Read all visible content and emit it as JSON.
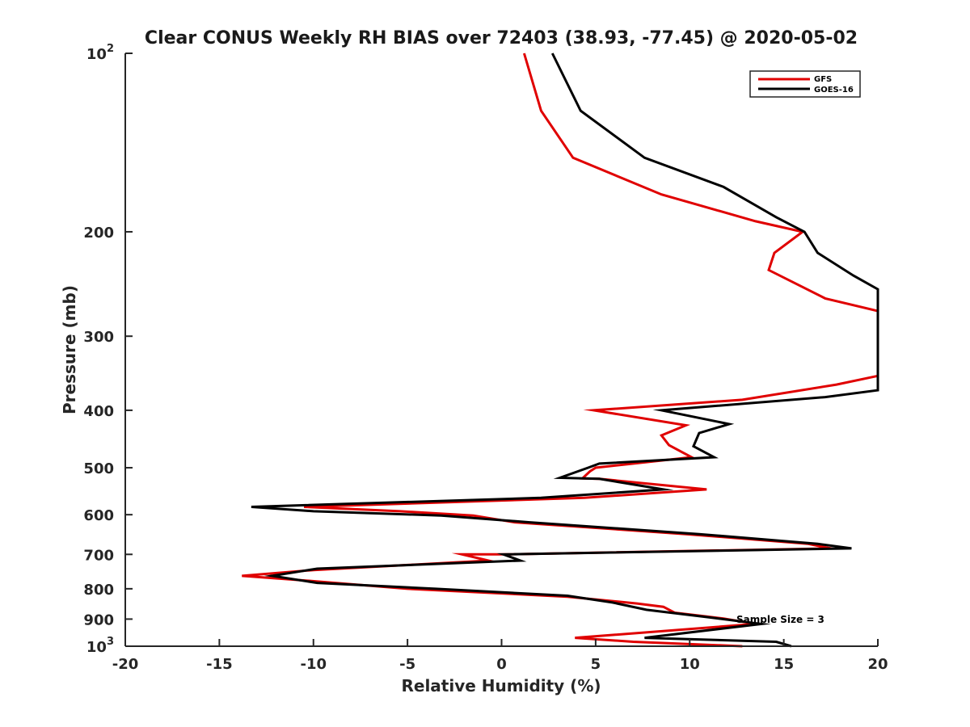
{
  "chart_data": {
    "type": "line",
    "title": "Clear CONUS Weekly RH BIAS over 72403 (38.93, -77.45) @ 2020-05-02",
    "xlabel": "Relative Humidity (%)",
    "ylabel": "Pressure (mb)",
    "xlim": [
      -20,
      20
    ],
    "ylim": [
      100,
      1000
    ],
    "y_scale": "log",
    "y_reversed": true,
    "x_ticks": [
      "-20",
      "-15",
      "-10",
      "-5",
      "0",
      "5",
      "10",
      "15",
      "20"
    ],
    "y_ticks": [
      {
        "value": 100,
        "base": "10",
        "exp": "2",
        "text": ""
      },
      {
        "value": 200,
        "base": "",
        "exp": "",
        "text": "200"
      },
      {
        "value": 300,
        "base": "",
        "exp": "",
        "text": "300"
      },
      {
        "value": 400,
        "base": "",
        "exp": "",
        "text": "400"
      },
      {
        "value": 500,
        "base": "",
        "exp": "",
        "text": "500"
      },
      {
        "value": 600,
        "base": "",
        "exp": "",
        "text": "600"
      },
      {
        "value": 700,
        "base": "",
        "exp": "",
        "text": "700"
      },
      {
        "value": 800,
        "base": "",
        "exp": "",
        "text": "800"
      },
      {
        "value": 900,
        "base": "",
        "exp": "",
        "text": "900"
      },
      {
        "value": 1000,
        "base": "10",
        "exp": "3",
        "text": ""
      }
    ],
    "grid": false,
    "legend_position": "top-right",
    "annotation": "Sample Size = 3",
    "series": [
      {
        "name": "GFS",
        "color": "#e00000",
        "points": [
          [
            1.2,
            100
          ],
          [
            2.1,
            125
          ],
          [
            3.8,
            150
          ],
          [
            8.5,
            173
          ],
          [
            13.5,
            192
          ],
          [
            16.0,
            200
          ],
          [
            14.5,
            217
          ],
          [
            14.2,
            232
          ],
          [
            17.2,
            259
          ],
          [
            20.0,
            272
          ],
          [
            20.0,
            350
          ],
          [
            17.8,
            362
          ],
          [
            12.8,
            384
          ],
          [
            4.9,
            400
          ],
          [
            9.8,
            424
          ],
          [
            8.5,
            441
          ],
          [
            8.9,
            458
          ],
          [
            10.1,
            480
          ],
          [
            5.0,
            500
          ],
          [
            4.7,
            507
          ],
          [
            4.3,
            521
          ],
          [
            5.2,
            522
          ],
          [
            10.9,
            544
          ],
          [
            4.4,
            562
          ],
          [
            -10.5,
            582
          ],
          [
            -5.4,
            592
          ],
          [
            -1.5,
            602
          ],
          [
            0.7,
            618
          ],
          [
            9.8,
            647
          ],
          [
            16.3,
            672
          ],
          [
            17.5,
            684
          ],
          [
            0.2,
            700
          ],
          [
            -2.1,
            700
          ],
          [
            -0.7,
            717
          ],
          [
            -10.0,
            744
          ],
          [
            -13.8,
            761
          ],
          [
            -10.1,
            776
          ],
          [
            -5.0,
            800
          ],
          [
            3.5,
            825
          ],
          [
            7.2,
            847
          ],
          [
            8.6,
            858
          ],
          [
            9.2,
            878
          ],
          [
            11.8,
            898
          ],
          [
            13.5,
            917
          ],
          [
            3.9,
            968
          ],
          [
            7.0,
            983
          ],
          [
            12.8,
            1000
          ]
        ]
      },
      {
        "name": "GOES-16",
        "color": "#000000",
        "points": [
          [
            2.7,
            100
          ],
          [
            4.2,
            125
          ],
          [
            7.6,
            150
          ],
          [
            11.8,
            168
          ],
          [
            14.6,
            189
          ],
          [
            16.1,
            200
          ],
          [
            16.8,
            217
          ],
          [
            18.7,
            237
          ],
          [
            20.0,
            250
          ],
          [
            20.0,
            370
          ],
          [
            17.2,
            380
          ],
          [
            11.5,
            393
          ],
          [
            8.5,
            400
          ],
          [
            12.1,
            422
          ],
          [
            10.5,
            437
          ],
          [
            10.2,
            460
          ],
          [
            11.3,
            480
          ],
          [
            5.2,
            492
          ],
          [
            4.6,
            500
          ],
          [
            3.1,
            520
          ],
          [
            5.2,
            522
          ],
          [
            8.6,
            544
          ],
          [
            2.1,
            562
          ],
          [
            -13.3,
            582
          ],
          [
            -10.0,
            592
          ],
          [
            -3.2,
            602
          ],
          [
            1.5,
            618
          ],
          [
            10.5,
            647
          ],
          [
            16.8,
            672
          ],
          [
            18.6,
            684
          ],
          [
            0.1,
            700
          ],
          [
            1.0,
            717
          ],
          [
            -9.8,
            740
          ],
          [
            -12.2,
            761
          ],
          [
            -9.8,
            782
          ],
          [
            -3.5,
            800
          ],
          [
            3.5,
            822
          ],
          [
            5.9,
            844
          ],
          [
            7.7,
            868
          ],
          [
            10.9,
            893
          ],
          [
            13.8,
            917
          ],
          [
            7.6,
            968
          ],
          [
            14.6,
            983
          ],
          [
            15.4,
            1000
          ]
        ]
      }
    ]
  }
}
